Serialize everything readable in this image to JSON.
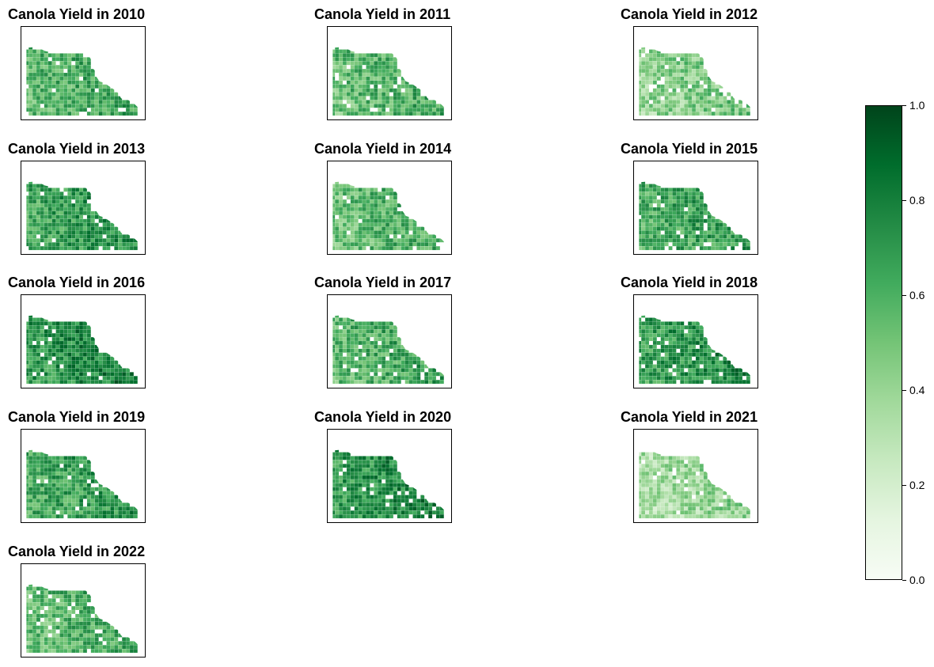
{
  "figure": {
    "panels": [
      {
        "title": "Canola Yield in 2010",
        "mean_yield": 0.58
      },
      {
        "title": "Canola Yield in 2011",
        "mean_yield": 0.55
      },
      {
        "title": "Canola Yield in 2012",
        "mean_yield": 0.42
      },
      {
        "title": "Canola Yield in 2013",
        "mean_yield": 0.66
      },
      {
        "title": "Canola Yield in 2014",
        "mean_yield": 0.55
      },
      {
        "title": "Canola Yield in 2015",
        "mean_yield": 0.62
      },
      {
        "title": "Canola Yield in 2016",
        "mean_yield": 0.72
      },
      {
        "title": "Canola Yield in 2017",
        "mean_yield": 0.58
      },
      {
        "title": "Canola Yield in 2018",
        "mean_yield": 0.68
      },
      {
        "title": "Canola Yield in 2019",
        "mean_yield": 0.64
      },
      {
        "title": "Canola Yield in 2020",
        "mean_yield": 0.7
      },
      {
        "title": "Canola Yield in 2021",
        "mean_yield": 0.35
      },
      {
        "title": "Canola Yield in 2022",
        "mean_yield": 0.56
      }
    ],
    "colorbar": {
      "colormap": "Greens",
      "colors": [
        "#f7fcf5",
        "#e5f5e0",
        "#c7e9c0",
        "#a1d99b",
        "#74c476",
        "#41ab5d",
        "#238b45",
        "#006d2c",
        "#00441b"
      ],
      "range": [
        0,
        1
      ],
      "ticks": [
        "0.0",
        "0.2",
        "0.4",
        "0.6",
        "0.8",
        "1.0"
      ]
    }
  }
}
